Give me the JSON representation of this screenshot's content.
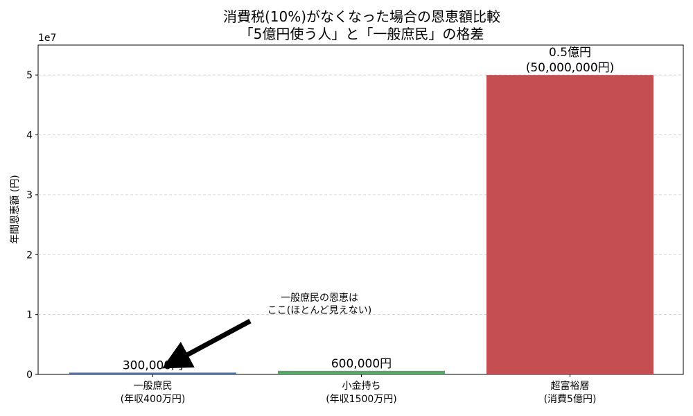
{
  "chart_data": {
    "type": "bar",
    "title": "消費税(10%)がなくなった場合の恩恵額比較",
    "subtitle": "「5億円使う人」と「一般庶民」の格差",
    "ylabel": "年間恩恵額 (円)",
    "xlabel": "",
    "y_scale_label": "1e7",
    "ylim": [
      0,
      55000000
    ],
    "yticks": [
      0,
      10000000,
      20000000,
      30000000,
      40000000,
      50000000
    ],
    "ytick_labels": [
      "0",
      "1",
      "2",
      "3",
      "4",
      "5"
    ],
    "grid": {
      "y": true,
      "style": "dashed"
    },
    "categories": [
      {
        "line1": "一般庶民",
        "line2": "(年収400万円)"
      },
      {
        "line1": "小金持ち",
        "line2": "(年収1500万円)"
      },
      {
        "line1": "超富裕層",
        "line2": "(消費5億円)"
      }
    ],
    "values": [
      300000,
      600000,
      50000000
    ],
    "colors": [
      "#4c72b0",
      "#55a868",
      "#c44e52"
    ],
    "value_labels": [
      [
        "300,000円"
      ],
      [
        "600,000円"
      ],
      [
        "0.5億円",
        "(50,000,000円)"
      ]
    ],
    "annotation": {
      "line1": "一般庶民の恩恵は",
      "line2": "ここ(ほとんど見えない)",
      "target_category_index": 0,
      "target_value": 300000
    }
  }
}
